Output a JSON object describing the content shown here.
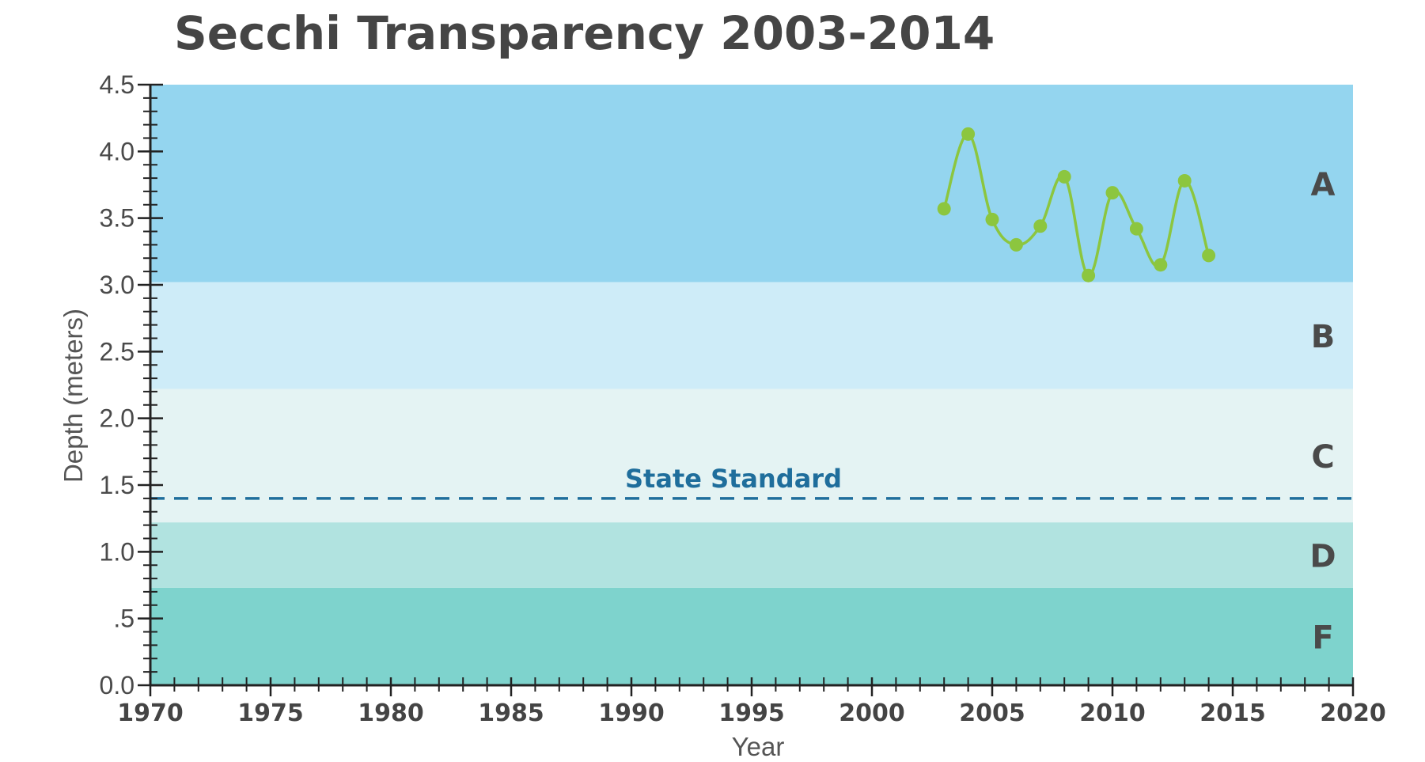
{
  "chart_data": {
    "type": "line",
    "title": "Secchi Transparency 2003-2014",
    "xlabel": "Year",
    "ylabel": "Depth (meters)",
    "xlim": [
      1970,
      2020
    ],
    "ylim": [
      0,
      4.5
    ],
    "x_ticks": [
      "1970",
      "1975",
      "1980",
      "1985",
      "1990",
      "1995",
      "2000",
      "2005",
      "2010",
      "2015",
      "2020"
    ],
    "y_ticks": [
      {
        "value": 0.0,
        "label": "0.0"
      },
      {
        "value": 0.5,
        "label": ".5"
      },
      {
        "value": 1.0,
        "label": "1.0"
      },
      {
        "value": 1.5,
        "label": "1.5"
      },
      {
        "value": 2.0,
        "label": "2.0"
      },
      {
        "value": 2.5,
        "label": "2.5"
      },
      {
        "value": 3.0,
        "label": "3.0"
      },
      {
        "value": 3.5,
        "label": "3.5"
      },
      {
        "value": 4.0,
        "label": "4.0"
      },
      {
        "value": 4.5,
        "label": "4.5"
      }
    ],
    "bands": [
      {
        "grade": "A",
        "from": 3.02,
        "to": 4.5,
        "color": "#94d5ef"
      },
      {
        "grade": "B",
        "from": 2.22,
        "to": 3.02,
        "color": "#ceecf8"
      },
      {
        "grade": "C",
        "from": 1.22,
        "to": 2.22,
        "color": "#e4f3f3"
      },
      {
        "grade": "D",
        "from": 0.73,
        "to": 1.22,
        "color": "#b1e3e0"
      },
      {
        "grade": "F",
        "from": 0.0,
        "to": 0.73,
        "color": "#7ed3cd"
      }
    ],
    "reference_line": {
      "label": "State Standard",
      "value": 1.4,
      "color": "#1f6e9c"
    },
    "series": [
      {
        "color": "#8cc63f",
        "x": [
          2003,
          2004,
          2005,
          2006,
          2007,
          2008,
          2009,
          2010,
          2011,
          2012,
          2013,
          2014
        ],
        "values": [
          3.57,
          4.13,
          3.49,
          3.3,
          3.44,
          3.81,
          3.07,
          3.69,
          3.42,
          3.15,
          3.78,
          3.22
        ]
      }
    ],
    "grid": false
  }
}
